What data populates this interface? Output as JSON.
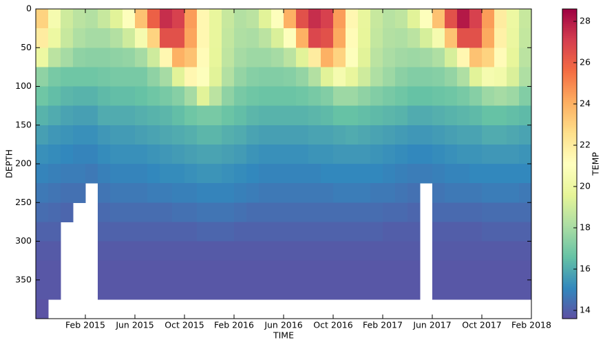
{
  "chart_data": {
    "type": "heatmap",
    "x_label": "TIME",
    "y_label": "DEPTH",
    "colorbar_label": "TEMP",
    "xlim": [
      "2014-10",
      "2018-02"
    ],
    "xticks": [
      {
        "value": "2015-02",
        "label": "Feb 2015"
      },
      {
        "value": "2015-06",
        "label": "Jun 2015"
      },
      {
        "value": "2015-10",
        "label": "Oct 2015"
      },
      {
        "value": "2016-02",
        "label": "Feb 2016"
      },
      {
        "value": "2016-06",
        "label": "Jun 2016"
      },
      {
        "value": "2016-10",
        "label": "Oct 2016"
      },
      {
        "value": "2017-02",
        "label": "Feb 2017"
      },
      {
        "value": "2017-06",
        "label": "Jun 2017"
      },
      {
        "value": "2017-10",
        "label": "Oct 2017"
      },
      {
        "value": "2018-02",
        "label": "Feb 2018"
      }
    ],
    "ylim": [
      400,
      0
    ],
    "yticks": [
      0,
      50,
      100,
      150,
      200,
      250,
      300,
      350
    ],
    "clim": [
      13.6,
      28.6
    ],
    "cticks": [
      14,
      16,
      18,
      20,
      22,
      24,
      26,
      28
    ],
    "colormap": [
      "#5e4fa2",
      "#3288bd",
      "#66c2a5",
      "#abdda4",
      "#e6f598",
      "#ffffbf",
      "#fee08b",
      "#fdae61",
      "#f46d43",
      "#d53e4f",
      "#9e0142"
    ],
    "x": [
      "2014-10",
      "2014-11",
      "2014-12",
      "2015-01",
      "2015-02",
      "2015-03",
      "2015-04",
      "2015-05",
      "2015-06",
      "2015-07",
      "2015-08",
      "2015-09",
      "2015-10",
      "2015-11",
      "2015-12",
      "2016-01",
      "2016-02",
      "2016-03",
      "2016-04",
      "2016-05",
      "2016-06",
      "2016-07",
      "2016-08",
      "2016-09",
      "2016-10",
      "2016-11",
      "2016-12",
      "2017-01",
      "2017-02",
      "2017-03",
      "2017-04",
      "2017-05",
      "2017-06",
      "2017-07",
      "2017-08",
      "2017-09",
      "2017-10",
      "2017-11",
      "2017-12",
      "2018-01"
    ],
    "y": [
      0,
      25,
      50,
      75,
      100,
      125,
      150,
      175,
      200,
      225,
      250,
      275,
      300,
      325,
      350,
      375
    ],
    "z": [
      [
        23,
        22,
        20,
        17.5,
        16.8,
        16.2,
        15.7,
        15.3,
        15,
        14.7,
        14.4,
        14.1,
        13.9,
        13.8,
        13.8,
        13.7
      ],
      [
        20.5,
        20,
        18.5,
        17,
        16.5,
        16,
        15.5,
        15.2,
        14.9,
        14.6,
        14.3,
        14.1,
        13.9,
        13.8,
        13.8,
        null
      ],
      [
        19,
        18.8,
        18,
        16.8,
        16.3,
        15.8,
        15.4,
        15.1,
        14.8,
        14.5,
        14.2,
        null,
        null,
        null,
        null,
        null
      ],
      [
        18.5,
        18.2,
        17.5,
        16.8,
        16.2,
        15.7,
        15.3,
        15,
        14.8,
        14.5,
        null,
        null,
        null,
        null,
        null,
        null
      ],
      [
        18.3,
        18,
        17.4,
        16.8,
        16.2,
        15.7,
        15.3,
        15,
        14.7,
        null,
        null,
        null,
        null,
        null,
        null,
        null
      ],
      [
        18.8,
        18,
        17.4,
        16.9,
        16.4,
        16,
        15.5,
        15.2,
        14.9,
        14.6,
        14.3,
        14.1,
        13.9,
        13.8,
        13.8,
        null
      ],
      [
        19.5,
        18.3,
        17.5,
        17,
        16.5,
        16,
        15.6,
        15.3,
        15,
        14.7,
        14.4,
        14.1,
        13.9,
        13.8,
        13.8,
        null
      ],
      [
        21,
        19,
        17.6,
        17,
        16.5,
        16,
        15.6,
        15.3,
        15,
        14.7,
        14.4,
        14.1,
        13.9,
        13.8,
        13.8,
        null
      ],
      [
        23.5,
        20.5,
        18,
        17,
        16.6,
        16.1,
        15.7,
        15.3,
        15,
        14.7,
        14.4,
        14.1,
        13.9,
        13.8,
        13.8,
        null
      ],
      [
        26,
        23,
        19,
        17.5,
        16.8,
        16.2,
        15.8,
        15.4,
        15.1,
        14.8,
        14.4,
        14.1,
        13.9,
        13.8,
        13.8,
        null
      ],
      [
        27.5,
        26.5,
        21.5,
        18,
        17,
        16.3,
        15.9,
        15.5,
        15.2,
        14.8,
        14.4,
        14.1,
        13.9,
        13.8,
        13.8,
        null
      ],
      [
        27,
        26.5,
        24,
        19.5,
        17.3,
        16.5,
        16,
        15.6,
        15.2,
        14.9,
        14.5,
        14.1,
        13.9,
        13.8,
        13.8,
        null
      ],
      [
        24.5,
        24.3,
        23.5,
        21.5,
        18,
        16.8,
        16.1,
        15.7,
        15.3,
        14.9,
        14.5,
        14.1,
        13.9,
        13.8,
        13.8,
        null
      ],
      [
        21.5,
        21.5,
        21.3,
        21,
        19.5,
        17,
        16.3,
        15.8,
        15.4,
        15,
        14.6,
        14.2,
        13.9,
        13.8,
        13.8,
        null
      ],
      [
        19.8,
        19.8,
        19.7,
        19.5,
        18.5,
        17,
        16.3,
        15.8,
        15.4,
        15,
        14.6,
        14.2,
        13.9,
        13.8,
        13.8,
        null
      ],
      [
        18.8,
        18.7,
        18.6,
        18.3,
        17.5,
        16.7,
        16.1,
        15.7,
        15.3,
        15,
        14.6,
        14.2,
        13.9,
        13.8,
        13.8,
        null
      ],
      [
        18.3,
        18.2,
        18,
        17.6,
        17,
        16.5,
        16,
        15.6,
        15.2,
        14.9,
        14.5,
        14.1,
        13.9,
        13.8,
        13.8,
        null
      ],
      [
        18.5,
        18.1,
        17.8,
        17.3,
        16.8,
        16.3,
        15.8,
        15.4,
        15.1,
        14.8,
        14.4,
        14.1,
        13.9,
        13.8,
        13.8,
        null
      ],
      [
        19.5,
        18.5,
        17.8,
        17.2,
        16.7,
        16.2,
        15.7,
        15.3,
        15,
        14.7,
        14.4,
        14.1,
        13.9,
        13.8,
        13.8,
        null
      ],
      [
        21,
        19.3,
        18,
        17.2,
        16.7,
        16.2,
        15.7,
        15.3,
        15,
        14.7,
        14.4,
        14.1,
        13.9,
        13.8,
        13.8,
        null
      ],
      [
        24,
        21,
        18.5,
        17.3,
        16.7,
        16.2,
        15.7,
        15.3,
        15,
        14.7,
        14.4,
        14.1,
        13.9,
        13.8,
        13.8,
        null
      ],
      [
        26.5,
        24,
        19.5,
        17.6,
        16.8,
        16.2,
        15.7,
        15.3,
        15,
        14.7,
        14.4,
        14.1,
        13.9,
        13.8,
        13.8,
        null
      ],
      [
        27.5,
        26.8,
        22,
        18.3,
        17,
        16.3,
        15.8,
        15.4,
        15,
        14.7,
        14.4,
        14.1,
        13.9,
        13.8,
        13.8,
        null
      ],
      [
        27,
        26.5,
        24,
        19.5,
        17.2,
        16.4,
        15.8,
        15.4,
        15.1,
        14.7,
        14.4,
        14.1,
        13.9,
        13.8,
        13.8,
        null
      ],
      [
        24.5,
        24.2,
        23,
        20.5,
        17.8,
        16.6,
        15.9,
        15.5,
        15.1,
        14.8,
        14.4,
        14.1,
        13.9,
        13.8,
        13.8,
        null
      ],
      [
        21.5,
        21.3,
        21,
        19.8,
        17.8,
        16.6,
        16,
        15.5,
        15.1,
        14.8,
        14.4,
        14.1,
        13.9,
        13.8,
        13.8,
        null
      ],
      [
        19.8,
        19.7,
        19.5,
        19,
        17.5,
        16.5,
        15.9,
        15.5,
        15.1,
        14.8,
        14.4,
        14.1,
        13.9,
        13.8,
        13.8,
        null
      ],
      [
        18.8,
        18.7,
        18.5,
        18.2,
        17.2,
        16.4,
        15.8,
        15.4,
        15.1,
        14.7,
        14.4,
        14.1,
        13.9,
        13.8,
        13.8,
        null
      ],
      [
        18.4,
        18.3,
        18.1,
        17.8,
        17,
        16.3,
        15.7,
        15.3,
        15,
        14.7,
        14.3,
        14,
        13.9,
        13.8,
        13.8,
        null
      ],
      [
        18.6,
        18.2,
        17.9,
        17.4,
        16.8,
        16.2,
        15.6,
        15.2,
        14.9,
        14.6,
        14.3,
        14,
        13.9,
        13.8,
        13.8,
        null
      ],
      [
        19.5,
        18.5,
        17.8,
        17.2,
        16.6,
        16,
        15.5,
        15.1,
        14.8,
        14.5,
        14.2,
        14,
        13.9,
        13.8,
        13.8,
        null
      ],
      [
        21,
        19.2,
        17.9,
        17.2,
        16.6,
        16,
        15.5,
        15.1,
        14.8,
        null,
        null,
        null,
        null,
        null,
        null,
        null
      ],
      [
        23.5,
        20.5,
        18.2,
        17.3,
        16.7,
        16.1,
        15.6,
        15.2,
        14.9,
        14.6,
        14.3,
        14,
        13.9,
        13.8,
        13.8,
        null
      ],
      [
        26.5,
        23.5,
        19.2,
        17.6,
        16.8,
        16.2,
        15.7,
        15.3,
        15,
        14.7,
        14.3,
        14,
        13.9,
        13.8,
        13.8,
        null
      ],
      [
        28,
        26.5,
        21.5,
        18.2,
        17,
        16.3,
        15.8,
        15.4,
        15,
        14.7,
        14.3,
        14,
        13.9,
        13.8,
        13.8,
        null
      ],
      [
        27,
        26.5,
        23.5,
        19.5,
        17.3,
        16.4,
        15.8,
        15.4,
        15.1,
        14.7,
        14.3,
        14,
        13.9,
        13.8,
        13.8,
        null
      ],
      [
        24.5,
        24.2,
        23,
        20.5,
        17.8,
        16.6,
        16,
        15.5,
        15.1,
        14.8,
        14.4,
        14.1,
        13.9,
        13.8,
        13.8,
        null
      ],
      [
        22,
        21.8,
        21.3,
        20.3,
        18,
        16.6,
        16,
        15.5,
        15.1,
        14.8,
        14.4,
        14.1,
        13.9,
        13.8,
        13.8,
        null
      ],
      [
        20,
        19.9,
        19.7,
        19.3,
        17.8,
        16.5,
        15.9,
        15.5,
        15.1,
        14.8,
        14.4,
        14.1,
        13.9,
        13.8,
        13.8,
        null
      ],
      [
        18.8,
        18.7,
        18.5,
        18.2,
        17.2,
        16.4,
        15.8,
        15.4,
        15.1,
        14.7,
        14.4,
        14.1,
        13.9,
        13.8,
        13.8,
        null
      ]
    ]
  }
}
